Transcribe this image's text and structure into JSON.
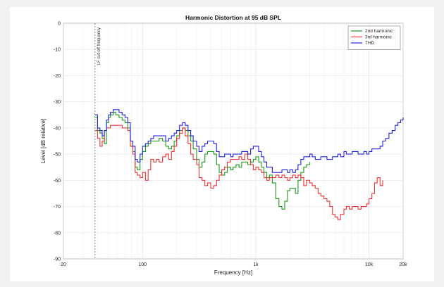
{
  "chart_data": {
    "type": "line",
    "title": "Harmonic Distortion at 95 dB SPL",
    "xlabel": "Frequency [Hz]",
    "ylabel": "Level [dB relative]",
    "x_scale": "log",
    "xlim": [
      20,
      20000
    ],
    "ylim": [
      -90,
      0
    ],
    "grid": true,
    "legend_position": "top-right",
    "x_ticks": [
      20,
      100,
      1000,
      10000,
      20000
    ],
    "x_tick_labels": [
      "20",
      "100",
      "1k",
      "10k",
      "20k"
    ],
    "y_ticks": [
      0,
      -10,
      -20,
      -30,
      -40,
      -50,
      -60,
      -70,
      -80,
      -90
    ],
    "y_tick_labels": [
      "0",
      "-10",
      "-20",
      "-30",
      "-40",
      "-50",
      "-60",
      "-70",
      "-80",
      "-90"
    ],
    "annotations": [
      {
        "text": "LF cut-off frequency",
        "x": 38
      }
    ],
    "series": [
      {
        "name": "2nd harmonic",
        "color": "#1a9a1a",
        "points": [
          [
            38,
            -36
          ],
          [
            40,
            -41
          ],
          [
            42,
            -42
          ],
          [
            44,
            -44
          ],
          [
            46,
            -46
          ],
          [
            48,
            -38
          ],
          [
            50,
            -36
          ],
          [
            52,
            -35
          ],
          [
            55,
            -34
          ],
          [
            58,
            -35
          ],
          [
            62,
            -36
          ],
          [
            66,
            -37
          ],
          [
            70,
            -38
          ],
          [
            74,
            -40
          ],
          [
            78,
            -47
          ],
          [
            82,
            -49
          ],
          [
            86,
            -55
          ],
          [
            90,
            -56
          ],
          [
            95,
            -52
          ],
          [
            100,
            -49
          ],
          [
            106,
            -47
          ],
          [
            112,
            -46
          ],
          [
            118,
            -45
          ],
          [
            125,
            -45
          ],
          [
            132,
            -45
          ],
          [
            140,
            -44
          ],
          [
            150,
            -45
          ],
          [
            160,
            -47
          ],
          [
            170,
            -48
          ],
          [
            180,
            -47
          ],
          [
            190,
            -45
          ],
          [
            200,
            -43
          ],
          [
            212,
            -41
          ],
          [
            225,
            -40
          ],
          [
            238,
            -41
          ],
          [
            252,
            -43
          ],
          [
            266,
            -45
          ],
          [
            280,
            -48
          ],
          [
            300,
            -52
          ],
          [
            315,
            -55
          ],
          [
            335,
            -53
          ],
          [
            355,
            -50
          ],
          [
            375,
            -49
          ],
          [
            400,
            -49
          ],
          [
            425,
            -50
          ],
          [
            450,
            -54
          ],
          [
            475,
            -57
          ],
          [
            500,
            -58
          ],
          [
            530,
            -57
          ],
          [
            560,
            -55
          ],
          [
            600,
            -56
          ],
          [
            630,
            -55
          ],
          [
            670,
            -54
          ],
          [
            710,
            -55
          ],
          [
            750,
            -53
          ],
          [
            800,
            -53
          ],
          [
            850,
            -54
          ],
          [
            900,
            -53
          ],
          [
            950,
            -52
          ],
          [
            1000,
            -51
          ],
          [
            1060,
            -53
          ],
          [
            1120,
            -55
          ],
          [
            1180,
            -57
          ],
          [
            1250,
            -59
          ],
          [
            1320,
            -58
          ],
          [
            1400,
            -61
          ],
          [
            1500,
            -67
          ],
          [
            1600,
            -70
          ],
          [
            1700,
            -71
          ],
          [
            1800,
            -68
          ],
          [
            1900,
            -64
          ],
          [
            2000,
            -63
          ],
          [
            2120,
            -63
          ],
          [
            2240,
            -65
          ],
          [
            2360,
            -60
          ],
          [
            2500,
            -57
          ],
          [
            2650,
            -55
          ],
          [
            2800,
            -54
          ],
          [
            3000,
            -53
          ]
        ]
      },
      {
        "name": "3rd harmonic",
        "color": "#ee3333",
        "points": [
          [
            38,
            -41
          ],
          [
            40,
            -44
          ],
          [
            42,
            -47
          ],
          [
            44,
            -45
          ],
          [
            46,
            -41
          ],
          [
            48,
            -40
          ],
          [
            50,
            -40
          ],
          [
            52,
            -39
          ],
          [
            55,
            -39
          ],
          [
            58,
            -39
          ],
          [
            62,
            -39
          ],
          [
            66,
            -40
          ],
          [
            70,
            -40
          ],
          [
            74,
            -41
          ],
          [
            78,
            -47
          ],
          [
            82,
            -50
          ],
          [
            86,
            -57
          ],
          [
            90,
            -58
          ],
          [
            95,
            -59
          ],
          [
            100,
            -57
          ],
          [
            106,
            -60
          ],
          [
            112,
            -56
          ],
          [
            118,
            -52
          ],
          [
            125,
            -53
          ],
          [
            132,
            -52
          ],
          [
            140,
            -53
          ],
          [
            150,
            -51
          ],
          [
            160,
            -50
          ],
          [
            170,
            -52
          ],
          [
            180,
            -49
          ],
          [
            190,
            -47
          ],
          [
            200,
            -44
          ],
          [
            212,
            -42
          ],
          [
            225,
            -40
          ],
          [
            238,
            -43
          ],
          [
            252,
            -46
          ],
          [
            266,
            -50
          ],
          [
            280,
            -52
          ],
          [
            300,
            -54
          ],
          [
            315,
            -59
          ],
          [
            335,
            -60
          ],
          [
            355,
            -62
          ],
          [
            375,
            -61
          ],
          [
            400,
            -63
          ],
          [
            425,
            -62
          ],
          [
            450,
            -60
          ],
          [
            475,
            -58
          ],
          [
            500,
            -56
          ],
          [
            530,
            -55
          ],
          [
            560,
            -53
          ],
          [
            600,
            -52
          ],
          [
            630,
            -52
          ],
          [
            670,
            -52
          ],
          [
            710,
            -51
          ],
          [
            750,
            -52
          ],
          [
            800,
            -50
          ],
          [
            850,
            -52
          ],
          [
            900,
            -54
          ],
          [
            950,
            -56
          ],
          [
            1000,
            -55
          ],
          [
            1060,
            -56
          ],
          [
            1120,
            -57
          ],
          [
            1180,
            -59
          ],
          [
            1250,
            -60
          ],
          [
            1320,
            -59
          ],
          [
            1400,
            -59
          ],
          [
            1500,
            -58
          ],
          [
            1600,
            -59
          ],
          [
            1700,
            -58
          ],
          [
            1800,
            -59
          ],
          [
            1900,
            -60
          ],
          [
            2000,
            -59
          ],
          [
            2120,
            -58
          ],
          [
            2240,
            -59
          ],
          [
            2360,
            -58
          ],
          [
            2500,
            -59
          ],
          [
            2650,
            -62
          ],
          [
            2800,
            -60
          ],
          [
            3000,
            -61
          ],
          [
            3150,
            -62
          ],
          [
            3350,
            -63
          ],
          [
            3550,
            -65
          ],
          [
            3750,
            -66
          ],
          [
            4000,
            -67
          ],
          [
            4250,
            -68
          ],
          [
            4500,
            -70
          ],
          [
            4750,
            -73
          ],
          [
            5000,
            -74
          ],
          [
            5300,
            -75
          ],
          [
            5600,
            -73
          ],
          [
            6000,
            -71
          ],
          [
            6300,
            -70
          ],
          [
            6700,
            -71
          ],
          [
            7100,
            -70
          ],
          [
            7500,
            -70
          ],
          [
            8000,
            -71
          ],
          [
            8500,
            -70
          ],
          [
            9000,
            -70
          ],
          [
            9500,
            -69
          ],
          [
            10000,
            -67
          ],
          [
            10600,
            -65
          ],
          [
            11200,
            -61
          ],
          [
            11800,
            -59
          ],
          [
            12500,
            -62
          ],
          [
            13200,
            -60
          ]
        ]
      },
      {
        "name": "THD",
        "color": "#2222dd",
        "points": [
          [
            38,
            -35
          ],
          [
            40,
            -40
          ],
          [
            42,
            -41
          ],
          [
            44,
            -43
          ],
          [
            46,
            -41
          ],
          [
            48,
            -37
          ],
          [
            50,
            -35
          ],
          [
            52,
            -34
          ],
          [
            55,
            -33
          ],
          [
            58,
            -33
          ],
          [
            62,
            -34
          ],
          [
            66,
            -35
          ],
          [
            70,
            -36
          ],
          [
            74,
            -38
          ],
          [
            78,
            -45
          ],
          [
            82,
            -47
          ],
          [
            86,
            -52
          ],
          [
            90,
            -53
          ],
          [
            95,
            -50
          ],
          [
            100,
            -47
          ],
          [
            106,
            -46
          ],
          [
            112,
            -45
          ],
          [
            118,
            -44
          ],
          [
            125,
            -43
          ],
          [
            132,
            -43
          ],
          [
            140,
            -43
          ],
          [
            150,
            -43
          ],
          [
            160,
            -45
          ],
          [
            170,
            -44
          ],
          [
            180,
            -43
          ],
          [
            190,
            -42
          ],
          [
            200,
            -41
          ],
          [
            212,
            -39
          ],
          [
            225,
            -38
          ],
          [
            238,
            -39
          ],
          [
            252,
            -41
          ],
          [
            266,
            -43
          ],
          [
            280,
            -45
          ],
          [
            300,
            -47
          ],
          [
            315,
            -49
          ],
          [
            335,
            -47
          ],
          [
            355,
            -46
          ],
          [
            375,
            -45
          ],
          [
            400,
            -45
          ],
          [
            425,
            -46
          ],
          [
            450,
            -49
          ],
          [
            475,
            -51
          ],
          [
            500,
            -51
          ],
          [
            530,
            -50
          ],
          [
            560,
            -50
          ],
          [
            600,
            -51
          ],
          [
            630,
            -50
          ],
          [
            670,
            -50
          ],
          [
            710,
            -50
          ],
          [
            750,
            -49
          ],
          [
            800,
            -49
          ],
          [
            850,
            -50
          ],
          [
            900,
            -48
          ],
          [
            950,
            -47
          ],
          [
            1000,
            -47
          ],
          [
            1060,
            -49
          ],
          [
            1120,
            -51
          ],
          [
            1180,
            -53
          ],
          [
            1250,
            -55
          ],
          [
            1320,
            -55
          ],
          [
            1400,
            -57
          ],
          [
            1500,
            -57
          ],
          [
            1600,
            -57
          ],
          [
            1700,
            -56
          ],
          [
            1800,
            -56
          ],
          [
            1900,
            -57
          ],
          [
            2000,
            -56
          ],
          [
            2120,
            -57
          ],
          [
            2240,
            -56
          ],
          [
            2360,
            -54
          ],
          [
            2500,
            -52
          ],
          [
            2650,
            -51
          ],
          [
            2800,
            -51
          ],
          [
            3000,
            -50
          ],
          [
            3150,
            -51
          ],
          [
            3350,
            -52
          ],
          [
            3550,
            -52
          ],
          [
            3750,
            -51
          ],
          [
            4000,
            -51
          ],
          [
            4250,
            -52
          ],
          [
            4500,
            -52
          ],
          [
            4750,
            -51
          ],
          [
            5000,
            -51
          ],
          [
            5300,
            -50
          ],
          [
            5600,
            -51
          ],
          [
            6000,
            -49
          ],
          [
            6300,
            -50
          ],
          [
            6700,
            -50
          ],
          [
            7100,
            -49
          ],
          [
            7500,
            -49
          ],
          [
            8000,
            -50
          ],
          [
            8500,
            -50
          ],
          [
            9000,
            -49
          ],
          [
            9500,
            -50
          ],
          [
            10000,
            -49
          ],
          [
            10600,
            -48
          ],
          [
            11200,
            -48
          ],
          [
            11800,
            -48
          ],
          [
            12500,
            -47
          ],
          [
            13200,
            -45
          ],
          [
            14000,
            -44
          ],
          [
            15000,
            -42
          ],
          [
            16000,
            -41
          ],
          [
            17000,
            -39
          ],
          [
            18000,
            -38
          ],
          [
            19000,
            -37
          ],
          [
            20000,
            -36
          ]
        ]
      }
    ]
  }
}
